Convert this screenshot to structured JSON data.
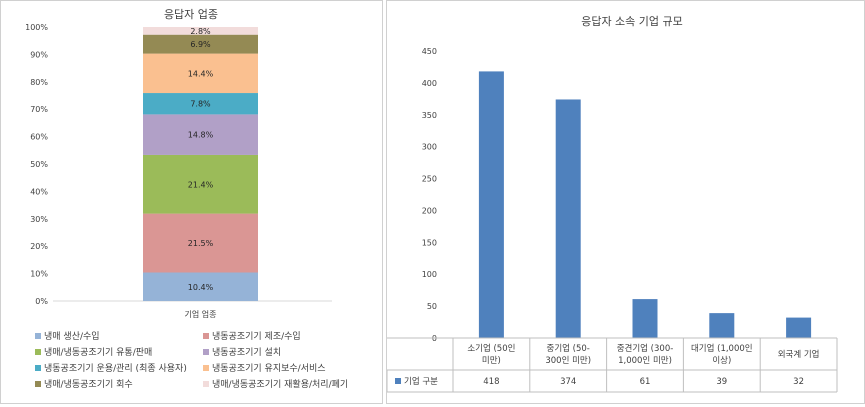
{
  "chart_data": [
    {
      "type": "bar",
      "stacked": true,
      "percent": true,
      "title": "응답자 업종",
      "categories": [
        "기업 업종"
      ],
      "ylim": [
        0,
        100
      ],
      "yticks": [
        "0%",
        "10%",
        "20%",
        "30%",
        "40%",
        "50%",
        "60%",
        "70%",
        "80%",
        "90%",
        "100%"
      ],
      "legend_position": "bottom",
      "grid": false,
      "series": [
        {
          "name": "냉매 생산/수입",
          "value": 10.4,
          "label": "10.4%",
          "color": "#95b3d7"
        },
        {
          "name": "냉동공조기기 제조/수입",
          "value": 21.5,
          "label": "21.5%",
          "color": "#da9694"
        },
        {
          "name": "냉매/냉동공조기기 유통/판매",
          "value": 21.4,
          "label": "21.4%",
          "color": "#9bbb59"
        },
        {
          "name": "냉동공조기기 설치",
          "value": 14.8,
          "label": "14.8%",
          "color": "#b1a0c7"
        },
        {
          "name": "냉동공조기기 운용/관리 (최종 사용자)",
          "value": 7.8,
          "label": "7.8%",
          "color": "#4bacc6"
        },
        {
          "name": "냉동공조기기 유지보수/서비스",
          "value": 14.4,
          "label": "14.4%",
          "color": "#fac090"
        },
        {
          "name": "냉매/냉동공조기기 회수",
          "value": 6.9,
          "label": "6.9%",
          "color": "#948a54"
        },
        {
          "name": "냉매/냉동공조기기 재활용/처리/폐기",
          "value": 2.8,
          "label": "2.8%",
          "color": "#f2dcdb"
        }
      ]
    },
    {
      "type": "bar",
      "title": "응답자 소속 기업 규모",
      "categories": [
        [
          "소기업 (50인",
          "미만)"
        ],
        [
          "중기업 (50-",
          "300인 미만)"
        ],
        [
          "중견기업 (300-",
          "1,000인 미만)"
        ],
        [
          "대기업 (1,000인",
          "이상)"
        ],
        [
          "외국계 기업"
        ]
      ],
      "ylim": [
        0,
        450
      ],
      "yticks": [
        "0",
        "50",
        "100",
        "150",
        "200",
        "250",
        "300",
        "350",
        "400",
        "450"
      ],
      "grid": false,
      "data_table": true,
      "series": [
        {
          "name": "기업 구분",
          "values": [
            418,
            374,
            61,
            39,
            32
          ],
          "labels": [
            "418",
            "374",
            "61",
            "39",
            "32"
          ],
          "color": "#4f81bd"
        }
      ]
    }
  ]
}
